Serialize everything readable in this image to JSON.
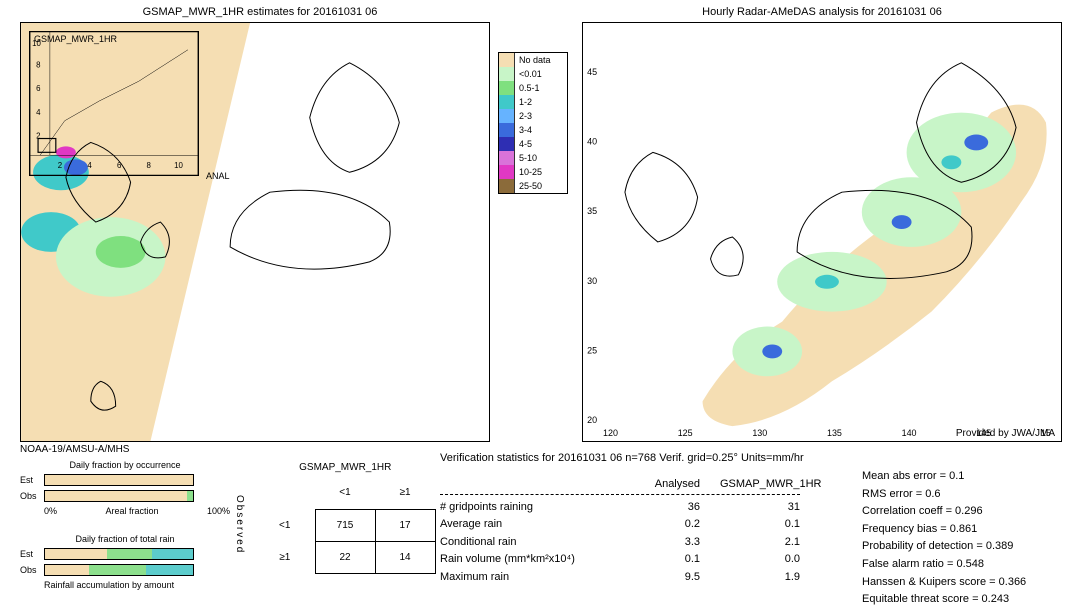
{
  "palette": {
    "nodata": "#f5deb3",
    "lt001": "#c8f5c8",
    "p05_1": "#7fe07f",
    "p1_2": "#40c9c9",
    "p2_3": "#66b3ff",
    "p3_4": "#3a6bdc",
    "p4_5": "#2e2eb3",
    "p5_10": "#d973d9",
    "p10_25": "#e138c4",
    "p25_50": "#8b6b3a",
    "land_line": "#000000",
    "grid": "#bfbfbf",
    "bg": "#ffffff",
    "bar_tan": "#f5deb3",
    "bar_green": "#8de08d",
    "bar_teal": "#5ccccc"
  },
  "left_map": {
    "title": "GSMAP_MWR_1HR estimates for 20161031 06",
    "inset_label": "GSMAP_MWR_1HR",
    "anal_label": "ANAL",
    "xticks": [
      2,
      4,
      6,
      8,
      10
    ],
    "yticks": [
      2,
      4,
      6,
      8,
      10
    ],
    "footer": "NOAA-19/AMSU-A/MHS"
  },
  "right_map": {
    "title": "Hourly Radar-AMeDAS analysis for 20161031 06",
    "provided": "Provided by JWA/JMA",
    "lon_ticks": [
      120,
      125,
      130,
      135,
      140,
      145,
      150
    ],
    "lat_ticks": [
      20,
      25,
      30,
      35,
      40,
      45
    ]
  },
  "legend": [
    {
      "key": "nodata",
      "label": "No data"
    },
    {
      "key": "lt001",
      "label": "<0.01"
    },
    {
      "key": "p05_1",
      "label": "0.5-1"
    },
    {
      "key": "p1_2",
      "label": "1-2"
    },
    {
      "key": "p2_3",
      "label": "2-3"
    },
    {
      "key": "p3_4",
      "label": "3-4"
    },
    {
      "key": "p4_5",
      "label": "4-5"
    },
    {
      "key": "p5_10",
      "label": "5-10"
    },
    {
      "key": "p10_25",
      "label": "10-25"
    },
    {
      "key": "p25_50",
      "label": "25-50"
    }
  ],
  "fractions": {
    "occ_title": "Daily fraction by occurrence",
    "occ_rows": [
      {
        "label": "Est",
        "segs": [
          {
            "color": "bar_tan",
            "from": 0,
            "to": 100
          }
        ]
      },
      {
        "label": "Obs",
        "segs": [
          {
            "color": "bar_tan",
            "from": 0,
            "to": 96
          },
          {
            "color": "bar_green",
            "from": 96,
            "to": 100
          }
        ]
      }
    ],
    "occ_axis": [
      "0%",
      "Areal fraction",
      "100%"
    ],
    "rain_title": "Daily fraction of total rain",
    "rain_rows": [
      {
        "label": "Est",
        "segs": [
          {
            "color": "bar_tan",
            "from": 0,
            "to": 42
          },
          {
            "color": "bar_green",
            "from": 42,
            "to": 72
          },
          {
            "color": "bar_teal",
            "from": 72,
            "to": 100
          }
        ]
      },
      {
        "label": "Obs",
        "segs": [
          {
            "color": "bar_tan",
            "from": 0,
            "to": 30
          },
          {
            "color": "bar_green",
            "from": 30,
            "to": 68
          },
          {
            "color": "bar_teal",
            "from": 68,
            "to": 100
          }
        ]
      }
    ],
    "rain_axis": "Rainfall accumulation by amount"
  },
  "contingency": {
    "title": "GSMAP_MWR_1HR",
    "col_heads": [
      "<1",
      "≥1"
    ],
    "row_heads": [
      "<1",
      "≥1"
    ],
    "side_label": "Observed",
    "cells": [
      [
        715,
        17
      ],
      [
        22,
        14
      ]
    ]
  },
  "verif_header": "Verification statistics for 20161031 06   n=768   Verif. grid=0.25°   Units=mm/hr",
  "verif_table": {
    "head": [
      "Analysed",
      "GSMAP_MWR_1HR"
    ],
    "rows": [
      {
        "lbl": "# gridpoints raining",
        "a": "36",
        "b": "31"
      },
      {
        "lbl": "Average rain",
        "a": "0.2",
        "b": "0.1"
      },
      {
        "lbl": "Conditional rain",
        "a": "3.3",
        "b": "2.1"
      },
      {
        "lbl": "Rain volume (mm*km²x10⁴)",
        "a": "0.1",
        "b": "0.0"
      },
      {
        "lbl": "Maximum rain",
        "a": "9.5",
        "b": "1.9"
      }
    ]
  },
  "scores": [
    {
      "lbl": "Mean abs error",
      "val": "0.1"
    },
    {
      "lbl": "RMS error",
      "val": "0.6"
    },
    {
      "lbl": "Correlation coeff",
      "val": "0.296"
    },
    {
      "lbl": "Frequency bias",
      "val": "0.861"
    },
    {
      "lbl": "Probability of detection",
      "val": "0.389"
    },
    {
      "lbl": "False alarm ratio",
      "val": "0.548"
    },
    {
      "lbl": "Hanssen & Kuipers score",
      "val": "0.366"
    },
    {
      "lbl": "Equitable threat score",
      "val": "0.243"
    }
  ]
}
